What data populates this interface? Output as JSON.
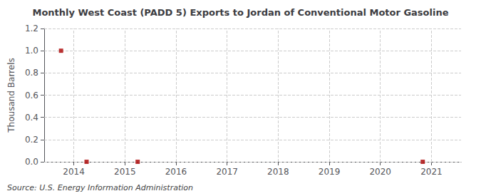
{
  "chart_data": {
    "type": "scatter",
    "title": "Monthly West Coast (PADD 5) Exports to Jordan of Conventional Motor Gasoline",
    "ylabel": "Thousand Barrels",
    "source": "Source: U.S. Energy Information Administration",
    "x": [
      2013.75,
      2014.25,
      2015.25,
      2020.83
    ],
    "values": [
      1.0,
      0.0,
      0.0,
      0.0
    ],
    "color": "#aa0000",
    "marker": "square",
    "xlim": [
      2013.42,
      2021.58
    ],
    "ylim": [
      0.0,
      1.2
    ],
    "xticks": [
      2014,
      2015,
      2016,
      2017,
      2018,
      2019,
      2020,
      2021
    ],
    "yticks": [
      {
        "value": 0.0,
        "label": "0.0"
      },
      {
        "value": 0.2,
        "label": "0.2"
      },
      {
        "value": 0.4,
        "label": "0.4"
      },
      {
        "value": 0.6,
        "label": "0.6"
      },
      {
        "value": 0.8,
        "label": "0.8"
      },
      {
        "value": 1.0,
        "label": "1.0"
      },
      {
        "value": 1.2,
        "label": "1.2"
      }
    ],
    "grid": true
  }
}
